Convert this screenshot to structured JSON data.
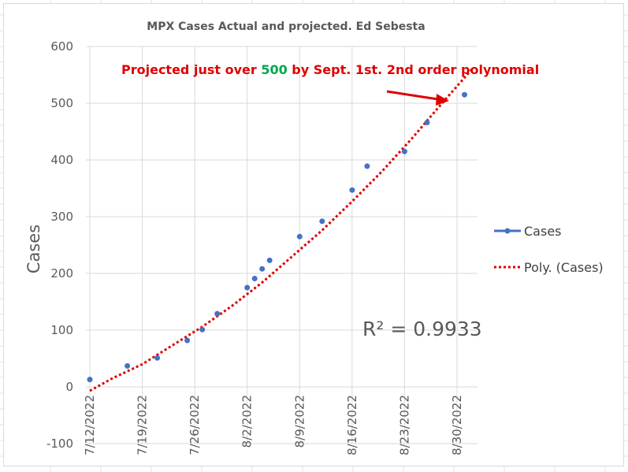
{
  "chart_data": {
    "type": "scatter",
    "title": "MPX Cases Actual and projected. Ed Sebesta",
    "ylabel": "Cases",
    "xlabel": "",
    "ylim": [
      -100,
      600
    ],
    "yticks": [
      -100,
      0,
      100,
      200,
      300,
      400,
      500,
      600
    ],
    "x_tick_labels": [
      "7/12/2022",
      "7/19/2022",
      "7/26/2022",
      "8/2/2022",
      "8/9/2022",
      "8/16/2022",
      "8/23/2022",
      "8/30/2022"
    ],
    "grid": true,
    "legend_position": "right",
    "series": [
      {
        "name": "Cases",
        "color": "#4472c4",
        "x": [
          "7/12/2022",
          "7/17/2022",
          "7/21/2022",
          "7/25/2022",
          "7/27/2022",
          "7/29/2022",
          "8/2/2022",
          "8/3/2022",
          "8/4/2022",
          "8/5/2022",
          "8/9/2022",
          "8/12/2022",
          "8/16/2022",
          "8/18/2022",
          "8/23/2022",
          "8/26/2022",
          "8/31/2022"
        ],
        "y": [
          13,
          37,
          51,
          82,
          101,
          129,
          175,
          191,
          208,
          223,
          265,
          292,
          347,
          389,
          415,
          466,
          515
        ]
      }
    ],
    "trendline": {
      "name": "Poly. (Cases)",
      "type": "polynomial",
      "order": 2,
      "color": "#e00000",
      "r_squared_label": "R² = 0.9933",
      "x": [
        "7/12/2022",
        "7/15/2022",
        "7/19/2022",
        "7/23/2022",
        "7/27/2022",
        "7/31/2022",
        "8/4/2022",
        "8/8/2022",
        "8/12/2022",
        "8/16/2022",
        "8/20/2022",
        "8/24/2022",
        "8/28/2022",
        "9/1/2022"
      ],
      "y": [
        -7,
        15,
        40,
        73,
        106,
        143,
        184,
        230,
        276,
        327,
        380,
        438,
        500,
        560
      ]
    },
    "annotation": {
      "parts": [
        {
          "text": "Projected just over ",
          "color": "#e00000"
        },
        {
          "text": "500",
          "color": "#00a550"
        },
        {
          "text": " by Sept. 1st. 2nd order polynomial",
          "color": "#e00000"
        }
      ],
      "arrow_color": "#e00000"
    }
  }
}
